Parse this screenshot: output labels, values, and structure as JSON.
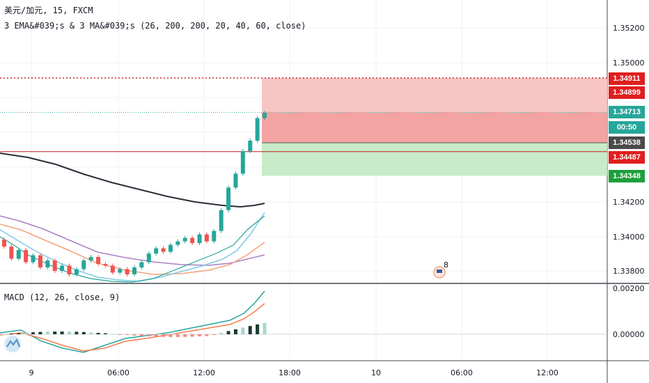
{
  "header": {
    "title": "美元/加元, 15, FXCM",
    "indicator_line": "3 EMA&#039;s & 3 MA&#039;s (26, 200, 200, 20, 40, 60, close)"
  },
  "macd": {
    "label": "MACD (12, 26, close, 9)"
  },
  "price_axis": {
    "labels": [
      "1.35200",
      "1.35000",
      "1.34200",
      "1.34000",
      "1.33800"
    ]
  },
  "macd_axis": {
    "labels": [
      "0.00200",
      "0.00000"
    ]
  },
  "time_axis": {
    "labels": [
      "9",
      "06:00",
      "12:00",
      "18:00",
      "10",
      "06:00",
      "12:00"
    ]
  },
  "price_tags": {
    "stop_top": "1.34911",
    "stop": "1.34899",
    "current": "1.34713",
    "countdown": "00:50",
    "entry": "1.34538",
    "red_line": "1.34487",
    "target": "1.34348"
  },
  "badges": {
    "event_count": "8"
  },
  "colors": {
    "up": "#26a69a",
    "down": "#ef5350",
    "stop_zone": "#f8c5c5",
    "stop_zone_dark": "#f4a3a3",
    "target_zone": "#c8ebc8",
    "current_tag": "#26a69a",
    "red_tag": "#e01e1e",
    "target_tag": "#1e9e3a",
    "entry_tag": "#4a4a4a"
  },
  "chart_data": {
    "type": "candlestick",
    "title": "美元/加元, 15, FXCM",
    "price_range": [
      1.3368,
      1.3537
    ],
    "candles_approx_close": [
      1.3394,
      1.3387,
      1.3392,
      1.3385,
      1.3389,
      1.3382,
      1.3386,
      1.338,
      1.3383,
      1.3378,
      1.3381,
      1.3386,
      1.3388,
      1.3384,
      1.3383,
      1.3379,
      1.3381,
      1.3378,
      1.3382,
      1.3385,
      1.339,
      1.3393,
      1.3391,
      1.3395,
      1.3397,
      1.3399,
      1.3396,
      1.3401,
      1.3397,
      1.3403,
      1.3415,
      1.3428,
      1.3436,
      1.3449,
      1.3455,
      1.3468,
      1.3471
    ],
    "horizontal_levels": [
      1.34911,
      1.34899,
      1.34713,
      1.34538,
      1.34487,
      1.34348
    ],
    "macd_range": [
      -0.0009,
      0.0022
    ]
  }
}
